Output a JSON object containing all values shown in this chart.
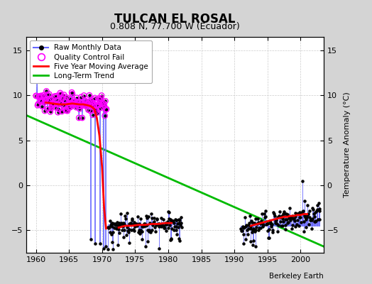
{
  "title": "TULCAN EL ROSAL",
  "subtitle": "0.808 N, 77.700 W (Ecuador)",
  "ylabel": "Temperature Anomaly (°C)",
  "credit": "Berkeley Earth",
  "xlim": [
    1958.5,
    2003.5
  ],
  "ylim": [
    -7.5,
    16.5
  ],
  "yticks": [
    -5,
    0,
    5,
    10,
    15
  ],
  "xticks": [
    1960,
    1965,
    1970,
    1975,
    1980,
    1985,
    1990,
    1995,
    2000
  ],
  "fig_bg_color": "#d4d4d4",
  "plot_bg_color": "#ffffff",
  "raw_line_color": "#6666ff",
  "raw_dot_color": "#000000",
  "qc_color": "#ff00ff",
  "moving_avg_color": "#ff0000",
  "trend_color": "#00bb00",
  "trend_x": [
    1958.5,
    2003.5
  ],
  "trend_y": [
    7.8,
    -6.8
  ],
  "ma_seg1_x": [
    1961.5,
    1962.5,
    1963.5,
    1964.5,
    1965.5,
    1966.5,
    1967.2,
    1967.8,
    1968.3,
    1968.8,
    1969.2,
    1969.6,
    1970.0,
    1970.3,
    1970.6
  ],
  "ma_seg1_y": [
    9.2,
    9.1,
    9.0,
    9.0,
    9.1,
    9.0,
    9.0,
    8.9,
    8.8,
    8.5,
    7.5,
    5.5,
    2.0,
    -2.5,
    -4.8
  ],
  "ma_seg2_x": [
    1972.5,
    1973.5,
    1974.5,
    1975.5,
    1976.5,
    1977.5,
    1978.5,
    1979.5,
    1980.5
  ],
  "ma_seg2_y": [
    -4.7,
    -4.5,
    -4.5,
    -4.4,
    -4.4,
    -4.3,
    -4.3,
    -4.2,
    -4.2
  ],
  "ma_seg3_x": [
    1992.5,
    1993.5,
    1994.5,
    1995.5,
    1996.5,
    1997.5,
    1998.0,
    1998.5,
    1999.0,
    1999.5,
    2000.0,
    2000.5,
    2001.0
  ],
  "ma_seg3_y": [
    -4.5,
    -4.3,
    -4.1,
    -3.9,
    -3.7,
    -3.5,
    -3.5,
    -3.4,
    -3.4,
    -3.3,
    -3.3,
    -3.2,
    -3.2
  ],
  "seg1_start": 1960.0,
  "seg1_end": 1970.7,
  "seg2_start": 1970.8,
  "seg2_end": 1982.0,
  "seg3_start": 1991.0,
  "seg3_end": 2003.0
}
